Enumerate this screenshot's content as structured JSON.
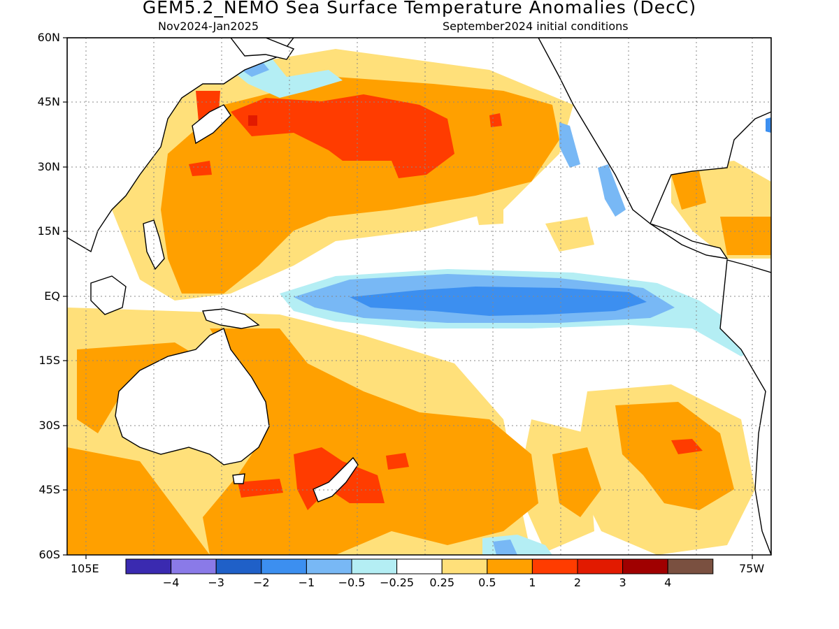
{
  "title": "GEM5.2_NEMO Sea Surface Temperature Anomalies (DecC)",
  "subtitle_left": "Nov2024-Jan2025",
  "subtitle_right": "September2024 initial conditions",
  "lat_labels": [
    "60N",
    "45N",
    "30N",
    "15N",
    "EQ",
    "15S",
    "30S",
    "45S",
    "60S"
  ],
  "lon_labels": {
    "left": "105E",
    "right": "75W"
  },
  "colorbar": {
    "labels": [
      "-4",
      "-3",
      "-2",
      "-1",
      "-0.5",
      "-0.25",
      "0.25",
      "0.5",
      "1",
      "2",
      "3",
      "4"
    ],
    "colors": [
      "#3a2ab0",
      "#8a7ae8",
      "#1f60c8",
      "#3c8ff0",
      "#78b8f5",
      "#b4eef4",
      "#ffffff",
      "#ffe07a",
      "#ffa000",
      "#ff3c00",
      "#e21a00",
      "#a00000",
      "#7a5040"
    ]
  },
  "chart_data": {
    "type": "heatmap",
    "title": "GEM5.2_NEMO Sea Surface Temperature Anomalies (DecC)",
    "period": "Nov2024-Jan2025",
    "initialization": "September2024 initial conditions",
    "units": "DecC",
    "lat_range": [
      "60S",
      "60N"
    ],
    "lon_range": [
      "105E",
      "75W"
    ],
    "levels": [
      -4,
      -3,
      -2,
      -1,
      -0.5,
      -0.25,
      0.25,
      0.5,
      1,
      2,
      3,
      4
    ],
    "grid": true
  }
}
